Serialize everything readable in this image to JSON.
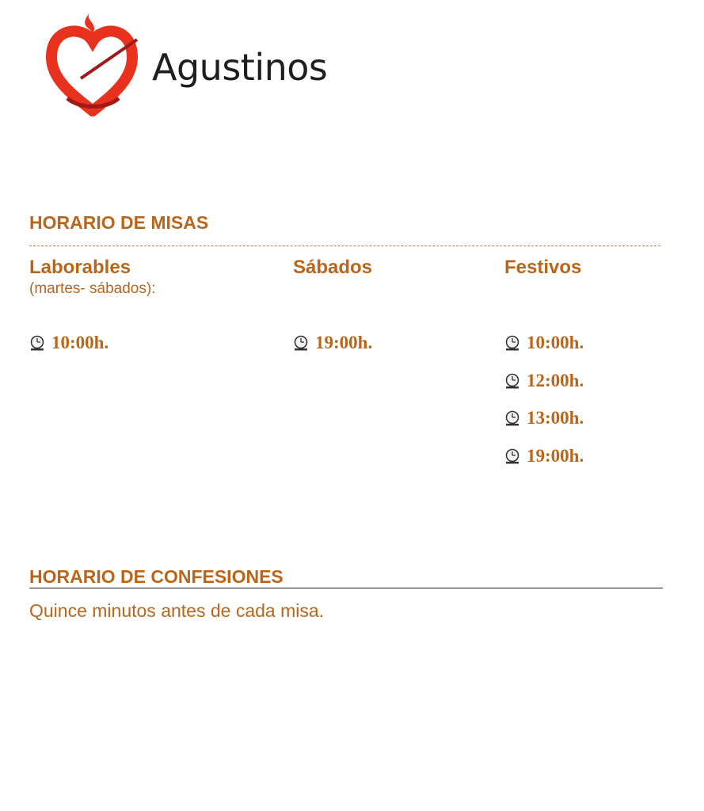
{
  "logo": {
    "text": "Agustinos",
    "icon": "heart-flame-arrow-logo",
    "colors": {
      "red": "#e8321e",
      "dark": "#1e1e1e"
    }
  },
  "accent_color": "#b9661b",
  "misas": {
    "title": "HORARIO DE MISAS",
    "columns": [
      {
        "title": "Laborables",
        "subtitle": "(martes- sábados):",
        "times": [
          "10:00h."
        ]
      },
      {
        "title": "Sábados",
        "subtitle": "",
        "times": [
          "19:00h."
        ]
      },
      {
        "title": "Festivos",
        "subtitle": "",
        "times": [
          "10:00h.",
          "12:00h.",
          "13:00h.",
          "19:00h."
        ]
      }
    ]
  },
  "confesiones": {
    "title": "HORARIO DE CONFESIONES",
    "text": "Quince minutos antes de cada misa."
  }
}
